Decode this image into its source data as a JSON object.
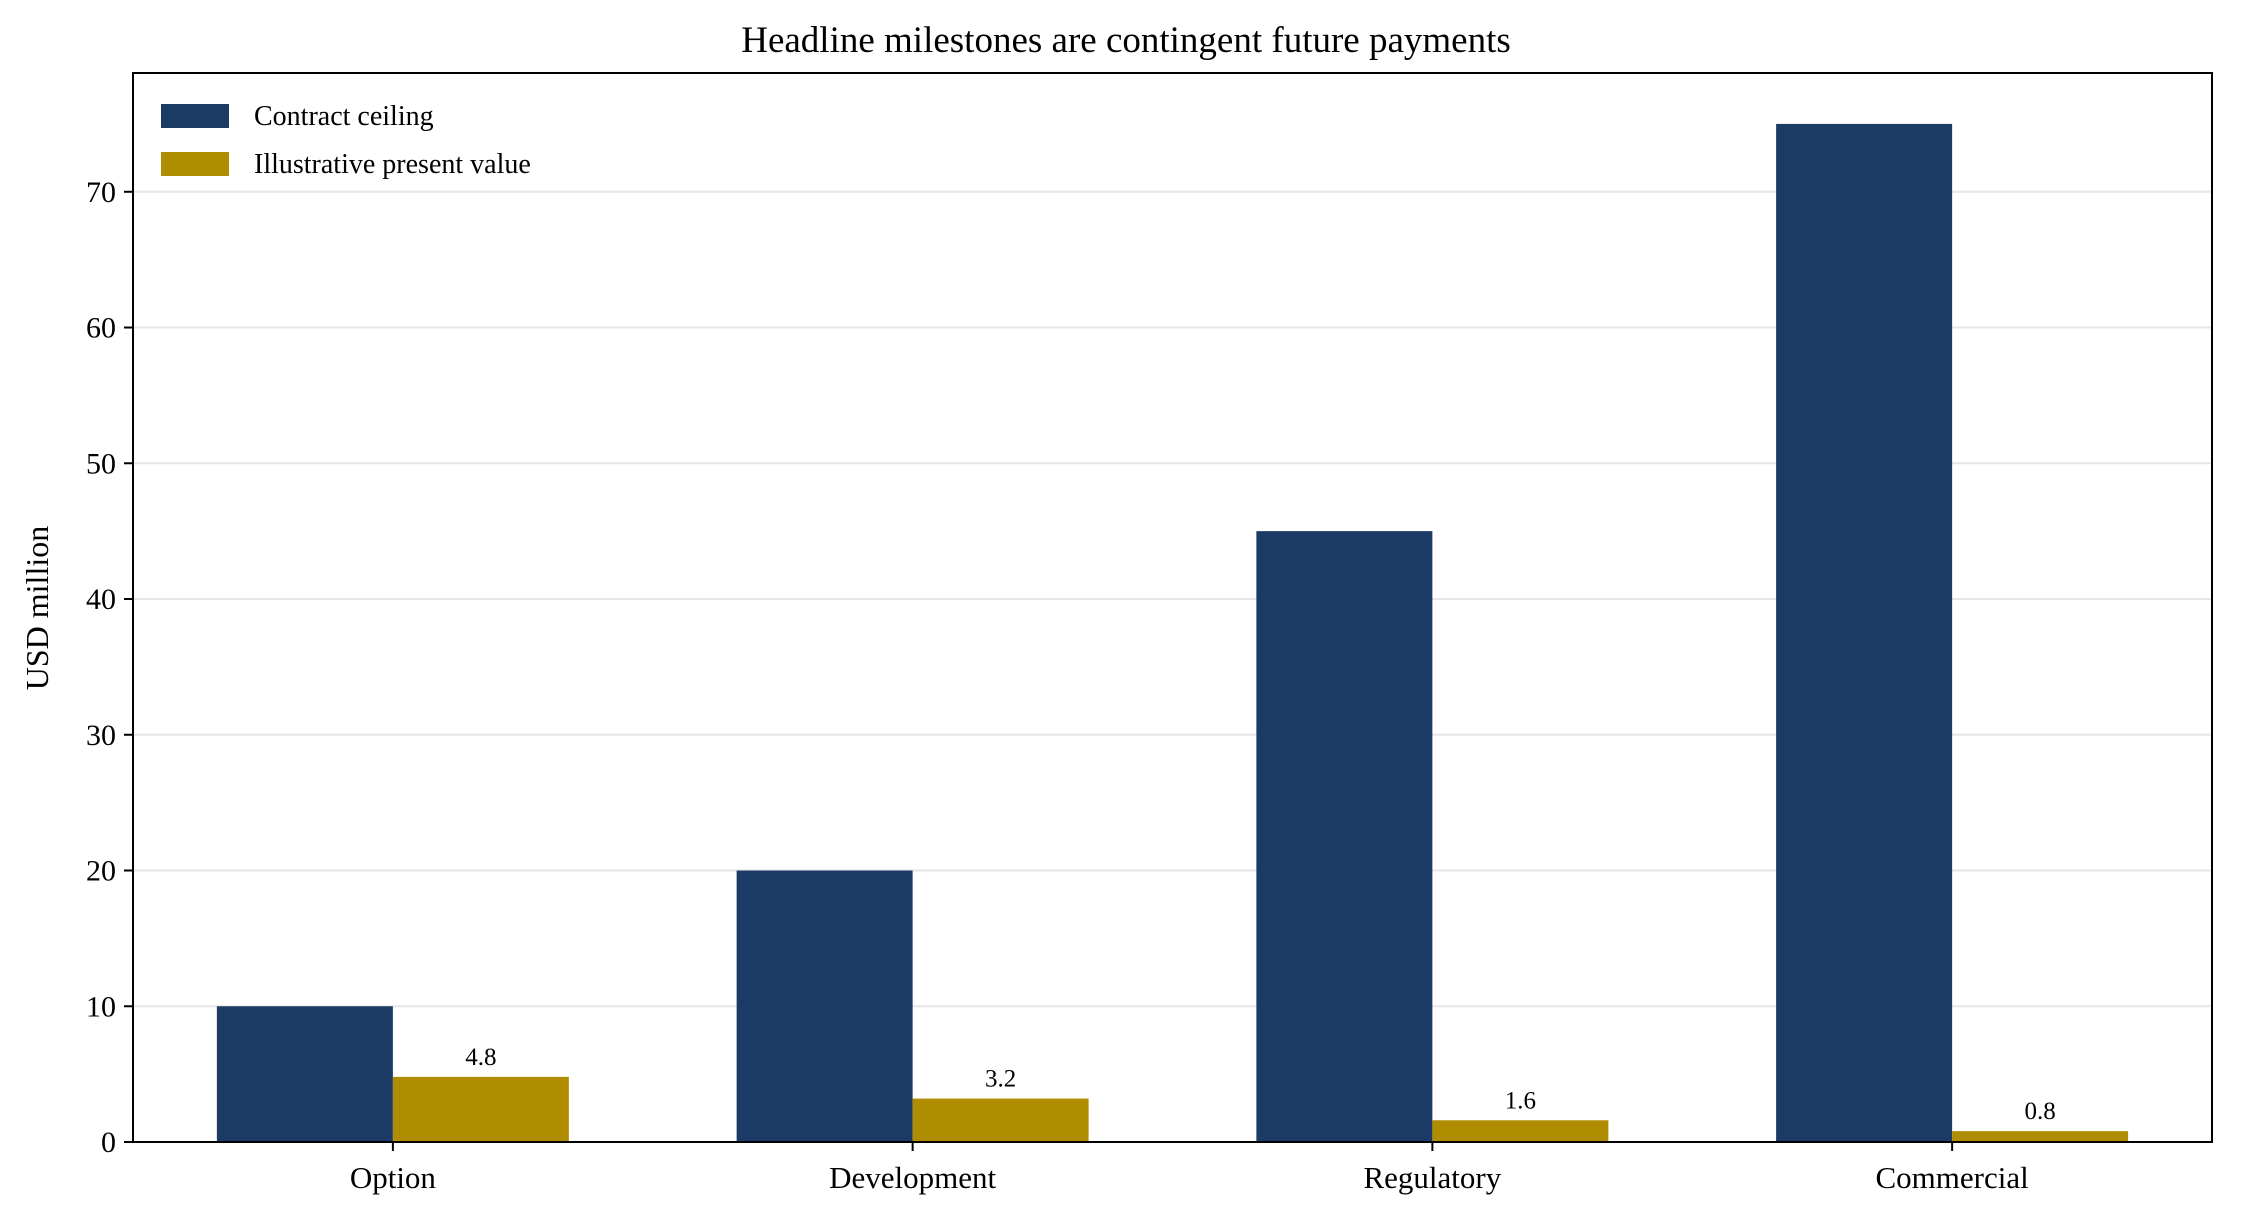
{
  "chart_data": {
    "type": "bar",
    "title": "Headline milestones are contingent future payments",
    "xlabel": "",
    "ylabel": "USD million",
    "categories": [
      "Option",
      "Development",
      "Regulatory",
      "Commercial"
    ],
    "series": [
      {
        "name": "Contract ceiling",
        "values": [
          10,
          20,
          45,
          75
        ],
        "color": "#1b3a66"
      },
      {
        "name": "Illustrative present value",
        "values": [
          4.8,
          3.2,
          1.6,
          0.8
        ],
        "color": "#b08d00",
        "labels": [
          "4.8",
          "3.2",
          "1.6",
          "0.8"
        ]
      }
    ],
    "ylim": [
      0,
      78.75
    ],
    "yticks": [
      "0",
      "10",
      "20",
      "30",
      "40",
      "50",
      "60",
      "70"
    ],
    "grid": "horizontal",
    "legend_position": "top-left"
  }
}
